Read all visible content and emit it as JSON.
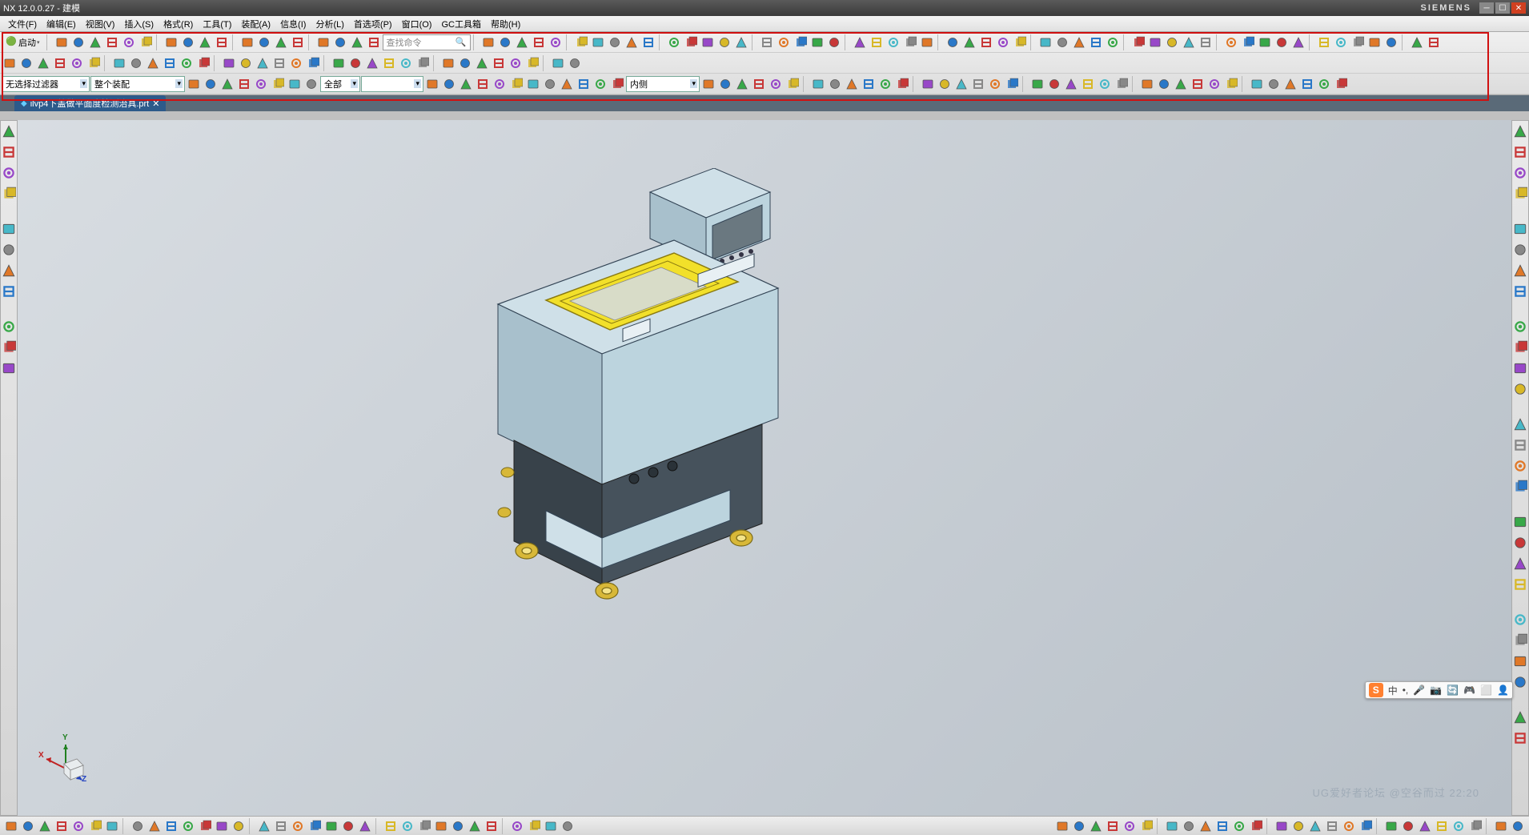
{
  "app": {
    "title": "NX 12.0.0.27 - 建模",
    "brand": "SIEMENS"
  },
  "menu": [
    "文件(F)",
    "编辑(E)",
    "视图(V)",
    "插入(S)",
    "格式(R)",
    "工具(T)",
    "装配(A)",
    "信息(I)",
    "分析(L)",
    "首选项(P)",
    "窗口(O)",
    "GC工具箱",
    "帮助(H)"
  ],
  "toolbar1": {
    "start_label": "启动",
    "search_placeholder": "查找命令"
  },
  "filters": {
    "combo1": "无选择过滤器",
    "combo2": "整个装配",
    "combo3": "全部",
    "combo4": "",
    "combo5": "内侧"
  },
  "tab": {
    "filename": "ilvp4下盖做平面度检测治具.prt"
  },
  "triad": {
    "x": "X",
    "y": "Y",
    "z": "Z"
  },
  "ime": {
    "badge": "S",
    "items": [
      "中",
      "•,",
      "🎤",
      "📷",
      "🔄",
      "🎮",
      "⬜",
      "👤"
    ]
  },
  "watermark": "UG爱好者论坛 @空谷而过  22:20",
  "colors": {
    "highlight": "#d01010",
    "tab_bg": "#2d5a8a",
    "workspace_a": "#d8dde2",
    "workspace_b": "#b8c0c8",
    "model_yellow": "#f2e02a",
    "model_body": "#cfe0e8",
    "model_dark": "#38424a",
    "wheel": "#d8b838"
  },
  "icon_rows": {
    "row1_count": 52,
    "row2_count": 32,
    "row3_small_count": 36,
    "bottom_left_count": 32,
    "bottom_right_count": 26,
    "side_l_count": 11,
    "side_r_count": 26
  },
  "icon_palette": [
    "#e07828",
    "#2a78c8",
    "#38a848",
    "#c83838",
    "#9848c8",
    "#d8b828",
    "#48b8c8",
    "#888888"
  ]
}
